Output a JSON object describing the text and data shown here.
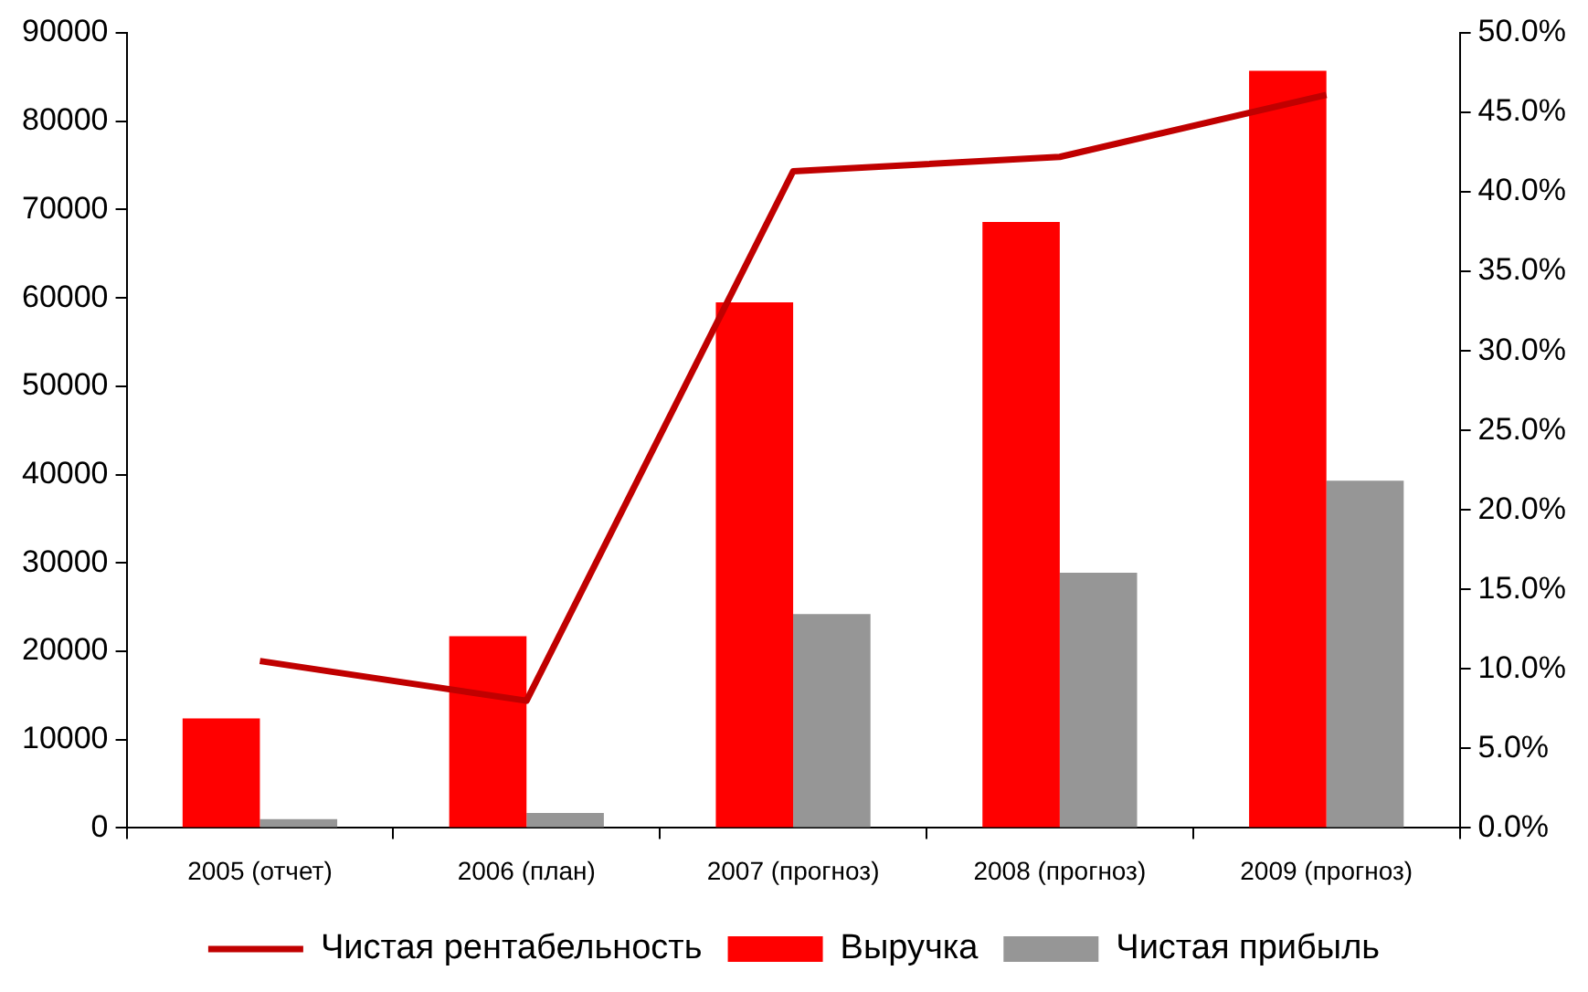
{
  "chart_data": {
    "type": "bar",
    "categories": [
      "2005 (отчет)",
      "2006 (план)",
      "2007 (прогноз)",
      "2008 (прогноз)",
      "2009 (прогноз)"
    ],
    "series": [
      {
        "name": "Выручка",
        "color": "#ff0000",
        "values": [
          12400,
          21700,
          59500,
          68600,
          85700
        ]
      },
      {
        "name": "Чистая прибыль",
        "color": "#969696",
        "values": [
          1000,
          1700,
          24200,
          28900,
          39300
        ]
      },
      {
        "name": "Чистая рентабельность",
        "type": "line",
        "axis": "y2",
        "color": "#c00000",
        "values": [
          10.5,
          8.0,
          41.3,
          42.2,
          46.1
        ]
      }
    ],
    "ylim": [
      0,
      90000
    ],
    "yticks": [
      0,
      10000,
      20000,
      30000,
      40000,
      50000,
      60000,
      70000,
      80000,
      90000
    ],
    "y2lim": [
      0,
      50
    ],
    "y2ticks": [
      {
        "value": 0,
        "label": "0.0%"
      },
      {
        "value": 5,
        "label": "5.0%"
      },
      {
        "value": 10,
        "label": "10.0%"
      },
      {
        "value": 15,
        "label": "15.0%"
      },
      {
        "value": 20,
        "label": "20.0%"
      },
      {
        "value": 25,
        "label": "25.0%"
      },
      {
        "value": 30,
        "label": "30.0%"
      },
      {
        "value": 35,
        "label": "35.0%"
      },
      {
        "value": 40,
        "label": "40.0%"
      },
      {
        "value": 45,
        "label": "45.0%"
      },
      {
        "value": 50,
        "label": "50.0%"
      }
    ],
    "grid": false,
    "legend": "bottom",
    "marker": "none",
    "line_style": "solid"
  }
}
